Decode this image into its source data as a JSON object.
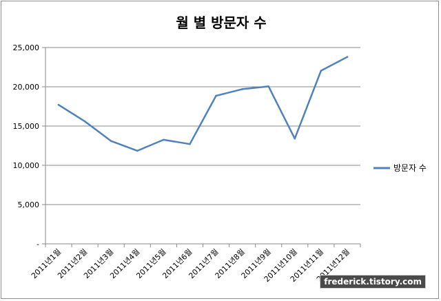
{
  "chart_data": {
    "type": "line",
    "title": "월 별 방문자 수",
    "categories": [
      "2011년1월",
      "2011년2월",
      "2011년3월",
      "2011년4월",
      "2011년5월",
      "2011년6월",
      "2011년7월",
      "2011년8월",
      "2011년9월",
      "2011년10월",
      "2011년11월",
      "2011년12월"
    ],
    "series": [
      {
        "name": "방문자 수",
        "color": "#4f81bd",
        "values": [
          17700,
          15600,
          13100,
          11850,
          13250,
          12700,
          18850,
          19700,
          20050,
          13400,
          22050,
          23800
        ]
      }
    ],
    "y_ticks": [
      "-",
      "5,000",
      "10,000",
      "15,000",
      "20,000",
      "25,000"
    ],
    "ylim": [
      0,
      25000
    ],
    "grid": true,
    "legend_position": "right"
  },
  "watermark": "frederick.tistory.com"
}
